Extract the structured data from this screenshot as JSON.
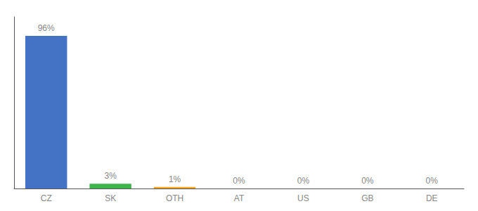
{
  "chart_data": {
    "type": "bar",
    "categories": [
      "CZ",
      "SK",
      "OTH",
      "AT",
      "US",
      "GB",
      "DE"
    ],
    "values": [
      96,
      3,
      1,
      0,
      0,
      0,
      0
    ],
    "value_labels": [
      "96%",
      "3%",
      "1%",
      "0%",
      "0%",
      "0%",
      "0%"
    ],
    "colors": [
      "#4472c4",
      "#3cb54a",
      "#f5a623",
      "#a0a0a0",
      "#a0a0a0",
      "#a0a0a0",
      "#a0a0a0"
    ],
    "ylim": [
      0,
      108
    ],
    "yticks": [],
    "grid": false,
    "tick_labels": "x",
    "data_labels": true
  }
}
